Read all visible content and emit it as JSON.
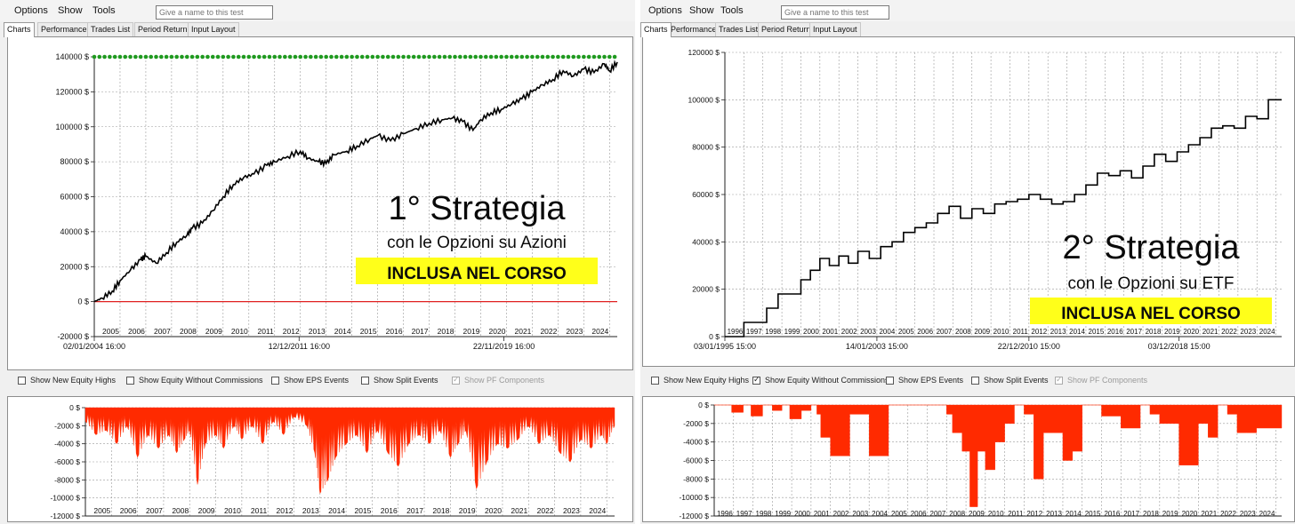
{
  "panels": [
    {
      "menu": [
        "Options",
        "Show",
        "Tools"
      ],
      "name_placeholder": "Give a name to this test",
      "tabs": [
        "Charts",
        "Performance",
        "Trades List",
        "Period Return",
        "Input Layout"
      ],
      "active_tab": 0,
      "checkboxes": [
        {
          "label": "Show New Equity Highs",
          "checked": false,
          "disabled": false
        },
        {
          "label": "Show Equity Without Commissions",
          "checked": false,
          "disabled": false
        },
        {
          "label": "Show EPS Events",
          "checked": false,
          "disabled": false
        },
        {
          "label": "Show Split Events",
          "checked": false,
          "disabled": false
        },
        {
          "label": "Show PF Components",
          "checked": true,
          "disabled": true
        }
      ],
      "overlay": {
        "title": "1° Strategia",
        "subtitle": "con le Opzioni su Azioni",
        "badge": "INCLUSA NEL CORSO"
      }
    },
    {
      "menu": [
        "Options",
        "Show",
        "Tools"
      ],
      "name_placeholder": "Give a name to this test",
      "tabs": [
        "Charts",
        "Performance",
        "Trades List",
        "Period Return",
        "Input Layout"
      ],
      "active_tab": 0,
      "checkboxes": [
        {
          "label": "Show New Equity Highs",
          "checked": false,
          "disabled": false
        },
        {
          "label": "Show Equity Without Commissions",
          "checked": true,
          "disabled": false
        },
        {
          "label": "Show EPS Events",
          "checked": false,
          "disabled": false
        },
        {
          "label": "Show Split Events",
          "checked": false,
          "disabled": false
        },
        {
          "label": "Show PF Components",
          "checked": true,
          "disabled": true
        }
      ],
      "overlay": {
        "title": "2° Strategia",
        "subtitle": "con le Opzioni su ETF",
        "badge": "INCLUSA NEL CORSO"
      }
    }
  ],
  "colors": {
    "equity_line": "#000000",
    "new_high_marker": "#1f9a1f",
    "zero_line": "#e02020",
    "drawdown_fill": "#ff2a00",
    "badge_bg": "#ffff1a",
    "grid": "#9a9a9a"
  },
  "chart_data": [
    {
      "type": "line",
      "id": "equity-1",
      "ylim": [
        -20000,
        140000
      ],
      "yticks": [
        -20000,
        0,
        20000,
        40000,
        60000,
        80000,
        100000,
        120000,
        140000
      ],
      "ytick_labels": [
        "-20000 $",
        "0 $",
        "20000 $",
        "40000 $",
        "60000 $",
        "80000 $",
        "100000 $",
        "120000 $",
        "140000 $"
      ],
      "xlim": [
        2004.0,
        2024.3
      ],
      "year_labels": [
        "2005",
        "2006",
        "2007",
        "2008",
        "2009",
        "2010",
        "2011",
        "2012",
        "2013",
        "2014",
        "2015",
        "2016",
        "2017",
        "2018",
        "2019",
        "2020",
        "2021",
        "2022",
        "2023",
        "2024"
      ],
      "date_labels": [
        "02/01/2004 16:00",
        "12/12/2011 16:00",
        "22/11/2019 16:00"
      ],
      "date_positions": [
        2004.0,
        2011.95,
        2019.9
      ],
      "new_highs_level": 140000,
      "series": [
        {
          "x": [
            2004.0,
            2004.3,
            2004.7,
            2005.0,
            2005.4,
            2005.8,
            2006.0,
            2006.4,
            2006.8,
            2007.2,
            2007.6,
            2007.8,
            2008.2,
            2008.6,
            2009.0,
            2009.4,
            2009.8,
            2010.2,
            2010.7,
            2011.0,
            2011.5,
            2012.0,
            2012.3,
            2012.7,
            2013.0,
            2013.3,
            2013.8,
            2014.2,
            2014.7,
            2015.0,
            2015.5,
            2016.0,
            2016.5,
            2017.0,
            2017.5,
            2017.9,
            2018.3,
            2018.7,
            2019.0,
            2019.4,
            2019.8,
            2020.2,
            2020.6,
            2021.0,
            2021.4,
            2021.8,
            2022.2,
            2022.6,
            2023.0,
            2023.4,
            2023.8,
            2024.0,
            2024.3
          ],
          "y": [
            0,
            2000,
            6000,
            12000,
            18000,
            24000,
            26000,
            22000,
            28000,
            34000,
            38000,
            42000,
            45000,
            52000,
            60000,
            67000,
            71000,
            73000,
            78000,
            80000,
            83000,
            86000,
            82000,
            80000,
            79000,
            84000,
            86000,
            89000,
            93000,
            95000,
            92000,
            96000,
            99000,
            102000,
            104000,
            105000,
            103000,
            98000,
            104000,
            108000,
            110000,
            113000,
            116000,
            120000,
            124000,
            127000,
            132000,
            129000,
            133000,
            131000,
            136000,
            132000,
            137000
          ]
        }
      ]
    },
    {
      "type": "area",
      "id": "drawdown-1",
      "ylim": [
        -12000,
        0
      ],
      "yticks": [
        0,
        -2000,
        -4000,
        -6000,
        -8000,
        -10000,
        -12000
      ],
      "ytick_labels": [
        "0 $",
        "-2000 $",
        "-4000 $",
        "-6000 $",
        "-8000 $",
        "-10000 $",
        "-12000 $"
      ],
      "xlim": [
        2004.0,
        2024.3
      ],
      "year_labels": [
        "2005",
        "2006",
        "2007",
        "2008",
        "2009",
        "2010",
        "2011",
        "2012",
        "2013",
        "2014",
        "2015",
        "2016",
        "2017",
        "2018",
        "2019",
        "2020",
        "2021",
        "2022",
        "2023",
        "2024"
      ],
      "series": [
        {
          "x": [
            2004.0,
            2004.4,
            2004.8,
            2005.2,
            2005.6,
            2006.0,
            2006.4,
            2006.8,
            2007.2,
            2007.5,
            2007.8,
            2008.0,
            2008.3,
            2008.6,
            2009.0,
            2009.3,
            2009.7,
            2010.0,
            2010.4,
            2010.8,
            2011.2,
            2011.6,
            2012.0,
            2012.5,
            2012.8,
            2013.0,
            2013.3,
            2013.6,
            2014.0,
            2014.4,
            2014.8,
            2015.2,
            2015.6,
            2016.0,
            2016.4,
            2016.8,
            2017.2,
            2017.6,
            2018.0,
            2018.3,
            2018.6,
            2019.0,
            2019.4,
            2019.8,
            2020.2,
            2020.6,
            2021.0,
            2021.4,
            2021.8,
            2022.2,
            2022.6,
            2023.0,
            2023.4,
            2023.8,
            2024.0,
            2024.3
          ],
          "y": [
            -1500,
            -3000,
            -2500,
            -4000,
            -2000,
            -5500,
            -3000,
            -4500,
            -3000,
            -5000,
            -3500,
            -2500,
            -8500,
            -4000,
            -3000,
            -4500,
            -2000,
            -3500,
            -2000,
            -4000,
            -1500,
            -3000,
            -1000,
            -2000,
            -5000,
            -9500,
            -8000,
            -5500,
            -4000,
            -3000,
            -5000,
            -2500,
            -5000,
            -6500,
            -4000,
            -3000,
            -4000,
            -2500,
            -5500,
            -4000,
            -2500,
            -9000,
            -6000,
            -4000,
            -4500,
            -3500,
            -2000,
            -4000,
            -3000,
            -5000,
            -6000,
            -3500,
            -4500,
            -3000,
            -4000,
            -2000
          ]
        }
      ]
    },
    {
      "type": "line",
      "id": "equity-2",
      "ylim": [
        0,
        120000
      ],
      "yticks": [
        0,
        20000,
        40000,
        60000,
        80000,
        100000,
        120000
      ],
      "ytick_labels": [
        "0 $",
        "20000 $",
        "40000 $",
        "60000 $",
        "80000 $",
        "100000 $",
        "120000 $"
      ],
      "xlim": [
        1995.0,
        2024.3
      ],
      "year_labels": [
        "1996",
        "1997",
        "1998",
        "1999",
        "2000",
        "2001",
        "2002",
        "2003",
        "2004",
        "2005",
        "2006",
        "2007",
        "2008",
        "2009",
        "2010",
        "2011",
        "2012",
        "2013",
        "2014",
        "2015",
        "2016",
        "2017",
        "2018",
        "2019",
        "2020",
        "2021",
        "2022",
        "2023",
        "2024"
      ],
      "date_labels": [
        "03/01/1995 15:00",
        "14/01/2003 15:00",
        "22/12/2010 15:00",
        "03/12/2018 15:00"
      ],
      "date_positions": [
        1995.0,
        2003.0,
        2011.0,
        2018.9
      ],
      "series": [
        {
          "x": [
            1995.0,
            1995.5,
            1996.0,
            1996.6,
            1997.2,
            1997.8,
            1998.4,
            1999.0,
            1999.5,
            2000.0,
            2000.5,
            2001.0,
            2001.5,
            2002.0,
            2002.6,
            2003.2,
            2003.8,
            2004.4,
            2005.0,
            2005.6,
            2006.2,
            2006.8,
            2007.4,
            2008.0,
            2008.6,
            2009.2,
            2009.8,
            2010.4,
            2011.0,
            2011.6,
            2012.2,
            2012.8,
            2013.4,
            2014.0,
            2014.6,
            2015.2,
            2015.8,
            2016.4,
            2017.0,
            2017.6,
            2018.2,
            2018.8,
            2019.4,
            2020.0,
            2020.6,
            2021.2,
            2021.8,
            2022.4,
            2023.0,
            2023.6,
            2024.3
          ],
          "y": [
            0,
            0,
            6000,
            6000,
            12000,
            18000,
            18000,
            24000,
            28000,
            33000,
            30000,
            34000,
            31000,
            36000,
            33000,
            38000,
            40000,
            44000,
            46000,
            48000,
            52000,
            55000,
            50000,
            54000,
            52000,
            56000,
            57000,
            58000,
            60000,
            58000,
            56000,
            57000,
            60000,
            64000,
            69000,
            68000,
            70000,
            67000,
            72000,
            77000,
            74000,
            78000,
            81000,
            84000,
            88000,
            89000,
            88000,
            93000,
            92000,
            100000,
            100000
          ]
        }
      ]
    },
    {
      "type": "area",
      "id": "drawdown-2",
      "ylim": [
        -12000,
        0
      ],
      "yticks": [
        0,
        -2000,
        -4000,
        -6000,
        -8000,
        -10000,
        -12000
      ],
      "ytick_labels": [
        "0 $",
        "-2000 $",
        "-4000 $",
        "-6000 $",
        "-8000 $",
        "-10000 $",
        "-12000 $"
      ],
      "xlim": [
        1995.0,
        2024.3
      ],
      "year_labels": [
        "1996",
        "1997",
        "1998",
        "1999",
        "2000",
        "2001",
        "2002",
        "2003",
        "2004",
        "2005",
        "2006",
        "2007",
        "2008",
        "2009",
        "2010",
        "2011",
        "2012",
        "2013",
        "2014",
        "2015",
        "2016",
        "2017",
        "2018",
        "2019",
        "2020",
        "2021",
        "2022",
        "2023",
        "2024"
      ],
      "series": [
        {
          "x": [
            1995.0,
            1995.5,
            1995.9,
            1996.5,
            1996.9,
            1997.5,
            1998.0,
            1998.5,
            1998.9,
            1999.5,
            2000.0,
            2000.3,
            2000.5,
            2001.0,
            2001.5,
            2002.0,
            2002.5,
            2003.0,
            2003.5,
            2004.0,
            2004.5,
            2005.0,
            2005.5,
            2006.0,
            2006.5,
            2007.0,
            2007.3,
            2007.8,
            2008.2,
            2008.6,
            2009.0,
            2009.5,
            2010.0,
            2010.5,
            2011.0,
            2011.5,
            2012.0,
            2012.5,
            2013.0,
            2013.5,
            2014.0,
            2014.5,
            2015.0,
            2015.5,
            2016.0,
            2016.5,
            2017.0,
            2017.5,
            2018.0,
            2018.5,
            2019.0,
            2019.5,
            2020.0,
            2020.5,
            2021.0,
            2021.5,
            2022.0,
            2022.5,
            2023.0,
            2023.5,
            2024.3
          ],
          "y": [
            0,
            0,
            -800,
            0,
            -1200,
            0,
            -600,
            0,
            -1500,
            -600,
            0,
            -1000,
            -3500,
            -5500,
            -5500,
            -1000,
            -1000,
            -5500,
            -5500,
            0,
            0,
            0,
            0,
            0,
            0,
            -1000,
            -3000,
            -5000,
            -11000,
            -5000,
            -7000,
            -4000,
            -2000,
            0,
            -1000,
            -8000,
            -3000,
            -3000,
            -6000,
            -5000,
            0,
            0,
            -1200,
            -1200,
            -2500,
            -2500,
            0,
            -1000,
            -2000,
            -2000,
            -6500,
            -6500,
            -2000,
            -3500,
            0,
            -1000,
            -3000,
            -3000,
            -2500,
            -2500,
            0
          ]
        }
      ]
    }
  ]
}
